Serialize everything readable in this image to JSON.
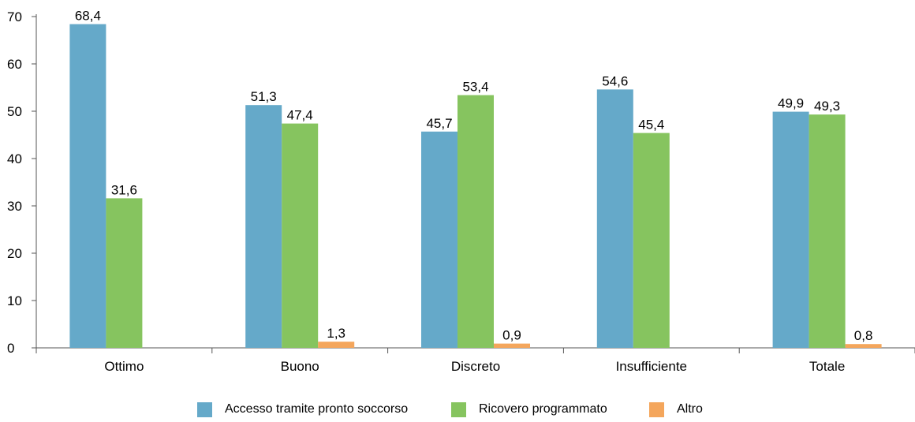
{
  "chart_data": {
    "type": "bar",
    "title": "",
    "xlabel": "",
    "ylabel": "",
    "ylim": [
      0,
      70
    ],
    "yticks": [
      0,
      10,
      20,
      30,
      40,
      50,
      60,
      70
    ],
    "categories": [
      "Ottimo",
      "Buono",
      "Discreto",
      "Insufficiente",
      "Totale"
    ],
    "series": [
      {
        "name": "Accesso tramite pronto soccorso",
        "color": "#65a9c9",
        "values": [
          68.4,
          51.3,
          45.7,
          54.6,
          49.9
        ],
        "labels": [
          "68,4",
          "51,3",
          "45,7",
          "54,6",
          "49,9"
        ]
      },
      {
        "name": "Ricovero programmato",
        "color": "#86c45f",
        "values": [
          31.6,
          47.4,
          53.4,
          45.4,
          49.3
        ],
        "labels": [
          "31,6",
          "47,4",
          "53,4",
          "45,4",
          "49,3"
        ]
      },
      {
        "name": "Altro",
        "color": "#f4a65c",
        "values": [
          null,
          1.3,
          0.9,
          null,
          0.8
        ],
        "labels": [
          "",
          "1,3",
          "0,9",
          "",
          "0,8"
        ]
      }
    ],
    "legend_position": "bottom",
    "grid": false
  }
}
